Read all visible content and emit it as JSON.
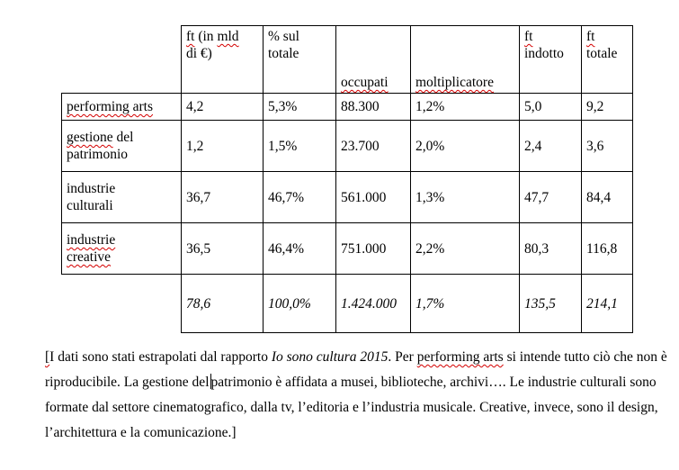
{
  "table": {
    "headers": [
      "",
      "ft (in mld di €)",
      "% sul totale",
      "occupati",
      "moltiplicatore",
      "ft indotto",
      "ft totale"
    ],
    "rows": [
      {
        "label": "performing arts",
        "ft": "4,2",
        "pct": "5,3%",
        "occupati": "88.300",
        "molt": "1,2%",
        "indotto": "5,0",
        "totale": "9,2"
      },
      {
        "label": "gestione del patrimonio",
        "ft": "1,2",
        "pct": "1,5%",
        "occupati": "23.700",
        "molt": "2,0%",
        "indotto": "2,4",
        "totale": "3,6"
      },
      {
        "label": "industrie culturali",
        "ft": "36,7",
        "pct": "46,7%",
        "occupati": "561.000",
        "molt": "1,3%",
        "indotto": "47,7",
        "totale": "84,4"
      },
      {
        "label": "industrie creative",
        "ft": "36,5",
        "pct": "46,4%",
        "occupati": "751.000",
        "molt": "2,2%",
        "indotto": "80,3",
        "totale": "116,8"
      }
    ],
    "totals": {
      "label": "",
      "ft": "78,6",
      "pct": "100,0%",
      "occupati": "1.424.000",
      "molt": "1,7%",
      "indotto": "135,5",
      "totale": "214,1"
    }
  },
  "note": {
    "open_bracket": "[",
    "s1": "I dati sono stati estrapolati dal rapporto ",
    "report_title": "Io sono cultura 2015",
    "s2": ". Per ",
    "term": "performing arts",
    "s3": " si intende tutto ciò che non è riproducibile. La gestione del",
    "s4": "patrimonio è affidata a musei, biblioteche, archivi…. Le industrie culturali sono formate dal settore cinematografico, dalla tv, l’editoria e l’industria musicale. Creative, invece, sono il design, l’architettura e la comunicazione.",
    "close_bracket": "]"
  }
}
